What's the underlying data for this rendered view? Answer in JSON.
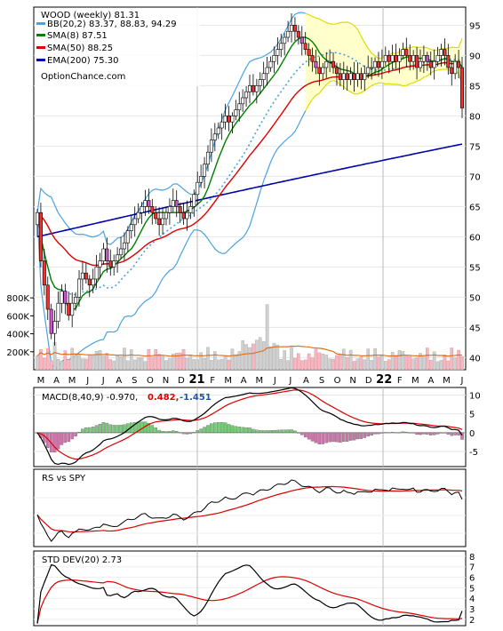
{
  "main": {
    "legend": {
      "title": "WOOD (weekly) 81.31",
      "bb": "BB(20,2) 83.37, 88.83, 94.29",
      "sma8": "SMA(8) 87.51",
      "sma50": "SMA(50) 88.25",
      "ema200": "EMA(200) 75.30",
      "site": "OptionChance.com"
    },
    "price_ticks": [
      "95",
      "90",
      "85",
      "80",
      "75",
      "70",
      "65",
      "60",
      "55",
      "50",
      "45",
      "40"
    ],
    "volume_ticks": [
      "800K",
      "600K",
      "400K",
      "200K"
    ],
    "month_labels": [
      "M",
      "A",
      "M",
      "J",
      "J",
      "A",
      "S",
      "O",
      "N",
      "D",
      "21",
      "F",
      "M",
      "A",
      "M",
      "J",
      "J",
      "A",
      "S",
      "O",
      "N",
      "D",
      "22",
      "F",
      "M",
      "A",
      "M",
      "J"
    ]
  },
  "macd": {
    "label": "MACD(8,40,9) -0.970,",
    "val1": "0.482,",
    "val2": "-1.451",
    "ticks": [
      "10",
      "5",
      "0",
      "-5"
    ]
  },
  "rs": {
    "label": "RS vs SPY"
  },
  "std": {
    "label": "STD DEV(20) 2.73",
    "ticks": [
      "8",
      "7",
      "6",
      "5",
      "4",
      "3",
      "2"
    ]
  },
  "colors": {
    "bb": "#4aa3df",
    "sma8": "#008000",
    "sma50": "#dd0000",
    "ema200": "#0000aa",
    "bb_fill": "#ffff66",
    "macd_hist_pos": "#77cc77",
    "macd_hist_neg": "#cc77aa",
    "volume_up": "#d0d0d0",
    "volume_down": "#f4b8c0",
    "volume_ma": "#e07020"
  },
  "chart_data": [
    {
      "type": "candlestick",
      "title": "WOOD (weekly) 81.31",
      "x_unit": "week",
      "x_range": [
        "2020-03",
        "2022-06"
      ],
      "ylim": [
        38,
        98
      ],
      "close": [
        64,
        56,
        52,
        48,
        44,
        46,
        49,
        51,
        49,
        47,
        49,
        50,
        53,
        54,
        53,
        52,
        53,
        55,
        56,
        58,
        56,
        55,
        56,
        57,
        58,
        59,
        61,
        62,
        63,
        64,
        65,
        66,
        65,
        64,
        63,
        62,
        63,
        64,
        65,
        66,
        65,
        64,
        63,
        64,
        65,
        67,
        69,
        70,
        72,
        74,
        76,
        77,
        78,
        79,
        80,
        79,
        80,
        81,
        82,
        83,
        84,
        85,
        84,
        85,
        86,
        87,
        88,
        89,
        90,
        91,
        92,
        93,
        94,
        95,
        94,
        93,
        92,
        91,
        90,
        89,
        88,
        87,
        88,
        89,
        89,
        88,
        87,
        86,
        87,
        86,
        87,
        86,
        87,
        86,
        87,
        88,
        88,
        89,
        88,
        89,
        90,
        89,
        90,
        89,
        90,
        91,
        90,
        89,
        90,
        88,
        89,
        90,
        89,
        88,
        89,
        90,
        91,
        90,
        88,
        87,
        89,
        88,
        81.31
      ],
      "sma8_last": 87.51,
      "sma50_last": 88.25,
      "ema200_last": 75.3,
      "bb_last": [
        83.37,
        88.83,
        94.29
      ]
    },
    {
      "type": "bar",
      "title": "Volume",
      "ylim": [
        0,
        950000
      ]
    },
    {
      "type": "line",
      "title": "MACD(8,40,9)",
      "values": {
        "macd": -0.97,
        "signal": 0.482,
        "histogram": -1.451
      },
      "ylim": [
        -9,
        12
      ]
    },
    {
      "type": "line",
      "title": "RS vs SPY"
    },
    {
      "type": "line",
      "title": "STD DEV(20)",
      "last": 2.73,
      "ylim": [
        1.4,
        8.5
      ]
    }
  ]
}
